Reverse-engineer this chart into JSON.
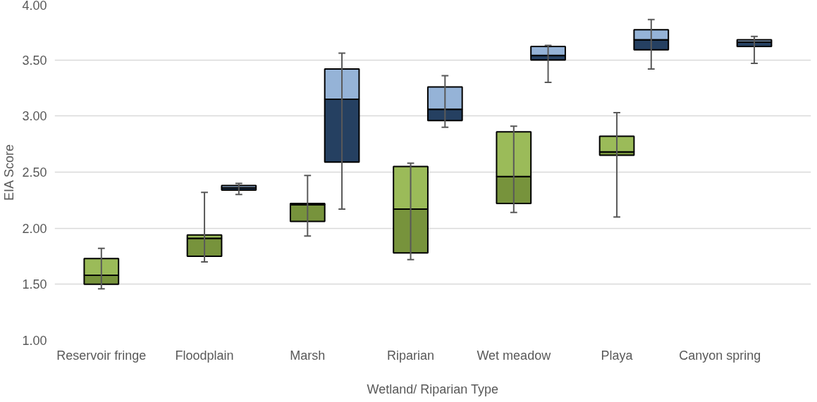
{
  "chart_data": {
    "type": "box",
    "xlabel": "Wetland/ Riparian Type",
    "ylabel": "EIA Score",
    "categories": [
      "Reservoir fringe",
      "Floodplain",
      "Marsh",
      "Riparian",
      "Wet meadow",
      "Playa",
      "Canyon spring"
    ],
    "ylim": [
      1.0,
      4.0
    ],
    "yticks": [
      {
        "value": 1.0,
        "label": "1.00"
      },
      {
        "value": 1.5,
        "label": "1.50"
      },
      {
        "value": 2.0,
        "label": "2.00"
      },
      {
        "value": 2.5,
        "label": "2.50"
      },
      {
        "value": 3.0,
        "label": "3.00"
      },
      {
        "value": 3.5,
        "label": "3.50"
      },
      {
        "value": 4.0,
        "label": "4.00"
      }
    ],
    "grid": "y",
    "series": [
      {
        "colors": [
          [
            "#77933c",
            "#9bbb59"
          ],
          [
            "#77933c",
            "#9bbb59"
          ],
          [
            "#77933c",
            "#9bbb59"
          ],
          [
            "#77933c",
            "#9bbb59"
          ],
          [
            "#77933c",
            "#9bbb59"
          ],
          [
            "#77933c",
            "#9bbb59"
          ],
          null
        ],
        "boxes": [
          {
            "low": 1.46,
            "q1": 1.5,
            "median": 1.58,
            "q3": 1.73,
            "high": 1.82
          },
          {
            "low": 1.7,
            "q1": 1.75,
            "median": 1.91,
            "q3": 1.94,
            "high": 2.32
          },
          {
            "low": 1.93,
            "q1": 2.06,
            "median": 2.21,
            "q3": 2.22,
            "high": 2.47
          },
          {
            "low": 1.72,
            "q1": 1.78,
            "median": 2.17,
            "q3": 2.55,
            "high": 2.58
          },
          {
            "low": 2.14,
            "q1": 2.22,
            "median": 2.46,
            "q3": 2.86,
            "high": 2.91
          },
          {
            "low": 2.1,
            "q1": 2.65,
            "median": 2.68,
            "q3": 2.82,
            "high": 3.03
          },
          null
        ]
      },
      {
        "colors": [
          null,
          [
            "#254061",
            "#95b3d7"
          ],
          [
            "#254061",
            "#95b3d7"
          ],
          [
            "#254061",
            "#95b3d7"
          ],
          [
            "#254061",
            "#95b3d7"
          ],
          [
            "#254061",
            "#95b3d7"
          ],
          [
            "#254061",
            "#95b3d7"
          ]
        ],
        "boxes": [
          null,
          {
            "low": 2.3,
            "q1": 2.34,
            "median": 2.36,
            "q3": 2.38,
            "high": 2.4
          },
          {
            "low": 2.17,
            "q1": 2.59,
            "median": 3.15,
            "q3": 3.42,
            "high": 3.56
          },
          {
            "low": 2.9,
            "q1": 2.96,
            "median": 3.06,
            "q3": 3.26,
            "high": 3.36
          },
          {
            "low": 3.3,
            "q1": 3.5,
            "median": 3.54,
            "q3": 3.62,
            "high": 3.63
          },
          {
            "low": 3.42,
            "q1": 3.59,
            "median": 3.68,
            "q3": 3.77,
            "high": 3.86
          },
          {
            "low": 3.47,
            "q1": 3.62,
            "median": 3.66,
            "q3": 3.68,
            "high": 3.71
          }
        ]
      }
    ]
  }
}
